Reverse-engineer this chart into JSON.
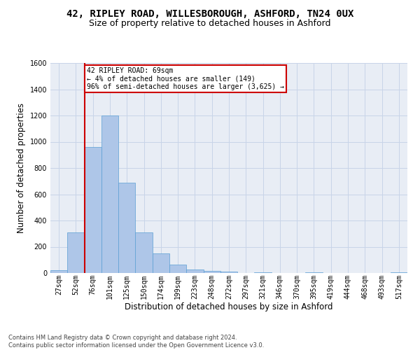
{
  "title1": "42, RIPLEY ROAD, WILLESBOROUGH, ASHFORD, TN24 0UX",
  "title2": "Size of property relative to detached houses in Ashford",
  "xlabel": "Distribution of detached houses by size in Ashford",
  "ylabel": "Number of detached properties",
  "footnote": "Contains HM Land Registry data © Crown copyright and database right 2024.\nContains public sector information licensed under the Open Government Licence v3.0.",
  "categories": [
    "27sqm",
    "52sqm",
    "76sqm",
    "101sqm",
    "125sqm",
    "150sqm",
    "174sqm",
    "199sqm",
    "223sqm",
    "248sqm",
    "272sqm",
    "297sqm",
    "321sqm",
    "346sqm",
    "370sqm",
    "395sqm",
    "419sqm",
    "444sqm",
    "468sqm",
    "493sqm",
    "517sqm"
  ],
  "bar_heights": [
    20,
    310,
    960,
    1200,
    690,
    310,
    150,
    65,
    25,
    15,
    10,
    0,
    5,
    0,
    0,
    5,
    0,
    0,
    0,
    0,
    5
  ],
  "bar_color": "#aec6e8",
  "bar_edge_color": "#5a9fd4",
  "annotation_box_text": "42 RIPLEY ROAD: 69sqm\n← 4% of detached houses are smaller (149)\n96% of semi-detached houses are larger (3,625) →",
  "annotation_box_color": "#ffffff",
  "annotation_box_edge_color": "#cc0000",
  "vline_color": "#cc0000",
  "ylim": [
    0,
    1600
  ],
  "yticks": [
    0,
    200,
    400,
    600,
    800,
    1000,
    1200,
    1400,
    1600
  ],
  "grid_color": "#c8d4e8",
  "bg_color": "#e8edf5",
  "title1_fontsize": 10,
  "title2_fontsize": 9,
  "tick_fontsize": 7,
  "label_fontsize": 8.5,
  "footnote_fontsize": 6
}
